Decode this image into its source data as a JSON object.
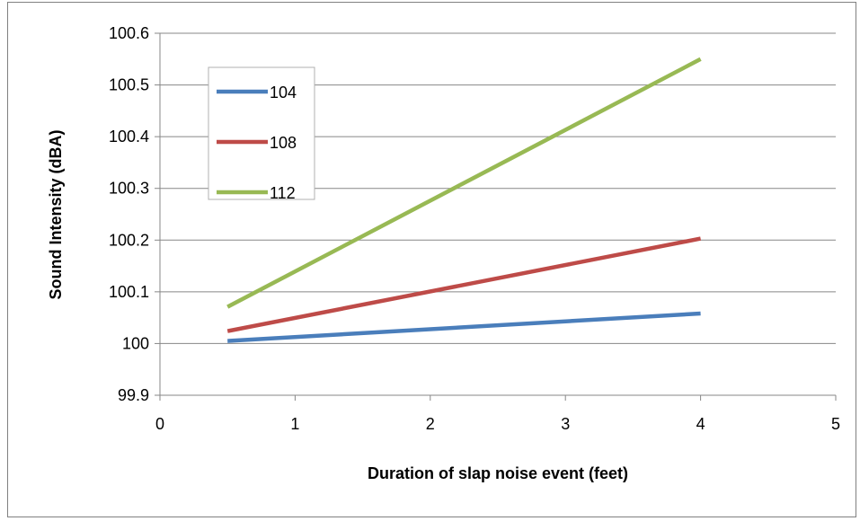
{
  "chart_data": {
    "type": "line",
    "title": "",
    "xlabel": "Duration of slap noise event (feet)",
    "ylabel": "Sound Intensity (dBA)",
    "xlim": [
      0,
      5
    ],
    "ylim": [
      99.9,
      100.6
    ],
    "x_ticks": [
      "0",
      "1",
      "2",
      "3",
      "4",
      "5"
    ],
    "y_ticks": [
      "99.9",
      "100",
      "100.1",
      "100.2",
      "100.3",
      "100.4",
      "100.5",
      "100.6"
    ],
    "grid": "horizontal",
    "legend_position": "top-left",
    "series": [
      {
        "name": "104",
        "color": "#4a7ebb",
        "points": [
          [
            0.5,
            100.005
          ],
          [
            4,
            100.058
          ]
        ]
      },
      {
        "name": "108",
        "color": "#be4b48",
        "points": [
          [
            0.5,
            100.024
          ],
          [
            4,
            100.203
          ]
        ]
      },
      {
        "name": "112",
        "color": "#98b954",
        "points": [
          [
            0.5,
            100.071
          ],
          [
            4,
            100.55
          ]
        ]
      }
    ]
  }
}
